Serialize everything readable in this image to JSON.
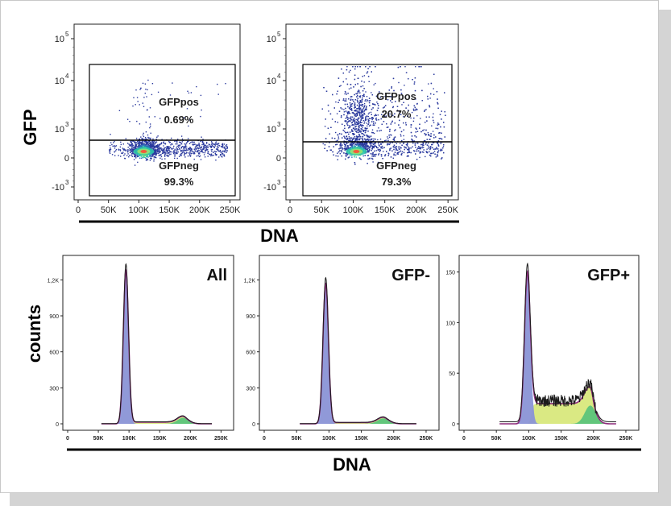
{
  "colors": {
    "axis": "#111111",
    "density_low": "#2b3a9e",
    "density_mid": "#2ec4a8",
    "density_high": "#f2c94c",
    "total_fit": "#8e2c7c",
    "g1_fill": "#8a93d6",
    "s_fill": "#d8e87c",
    "g2_fill": "#5cc47a",
    "data_line": "#1a1a1a"
  },
  "top_ylabel": "GFP",
  "top_xlabel": "DNA",
  "bottom_ylabel": "counts",
  "bottom_xlabel": "DNA",
  "chart_data": [
    {
      "type": "scatter",
      "subtype": "density-dot-plot",
      "name": "all-cells",
      "xlabel": "DNA",
      "ylabel": "GFP",
      "x_ticks": [
        "0",
        "50K",
        "100K",
        "150K",
        "200K",
        "250K"
      ],
      "y_ticks": [
        {
          "base": "10",
          "exp": "5"
        },
        {
          "base": "10",
          "exp": "4"
        },
        {
          "base": "10",
          "exp": "3"
        },
        {
          "base": "0",
          "exp": ""
        },
        {
          "base": "-10",
          "exp": "3"
        }
      ],
      "gates": [
        {
          "name": "GFPpos",
          "label": "GFPpos",
          "percent": "0.69%",
          "fraction": 0.0069
        },
        {
          "name": "GFPneg",
          "label": "GFPneg",
          "percent": "99.3%",
          "fraction": 0.993
        }
      ],
      "population": {
        "center_dna": 108000,
        "dna_spread": 20000,
        "s_tail_to": 245000,
        "gfp_spread": "low"
      }
    },
    {
      "type": "scatter",
      "subtype": "density-dot-plot",
      "name": "transfected-cells",
      "xlabel": "DNA",
      "ylabel": "GFP",
      "x_ticks": [
        "0",
        "50K",
        "100K",
        "150K",
        "200K",
        "250K"
      ],
      "y_ticks": [
        {
          "base": "10",
          "exp": "5"
        },
        {
          "base": "10",
          "exp": "4"
        },
        {
          "base": "10",
          "exp": "3"
        },
        {
          "base": "0",
          "exp": ""
        },
        {
          "base": "-10",
          "exp": "3"
        }
      ],
      "gates": [
        {
          "name": "GFPpos",
          "label": "GFPpos",
          "percent": "20.7%",
          "fraction": 0.207
        },
        {
          "name": "GFPneg",
          "label": "GFPneg",
          "percent": "79.3%",
          "fraction": 0.793
        }
      ],
      "population": {
        "center_dna": 105000,
        "dna_spread": 22000,
        "s_tail_to": 245000,
        "gfp_spread": "high"
      }
    },
    {
      "type": "area",
      "subtype": "cell-cycle-histogram",
      "name": "All",
      "title": "All",
      "xlabel": "DNA",
      "ylabel": "counts",
      "x_ticks": [
        "0",
        "50K",
        "100K",
        "150K",
        "200K",
        "250K"
      ],
      "y_ticks": [
        "0",
        "300",
        "600",
        "900",
        "1,2K"
      ],
      "xlim": [
        0,
        260000
      ],
      "ylim": [
        0,
        1350
      ],
      "peaks": {
        "g1_center": 95000,
        "g1_sigma": 4200,
        "g1_height": 1280,
        "g2_center": 188000,
        "g2_sigma": 9000,
        "g2_height": 50,
        "s_level": 14
      }
    },
    {
      "type": "area",
      "subtype": "cell-cycle-histogram",
      "name": "GFP-",
      "title": "GFP-",
      "xlabel": "DNA",
      "ylabel": "counts",
      "x_ticks": [
        "0",
        "50K",
        "100K",
        "150K",
        "200K",
        "250K"
      ],
      "y_ticks": [
        "0",
        "300",
        "600",
        "900",
        "1,2K"
      ],
      "xlim": [
        0,
        260000
      ],
      "ylim": [
        0,
        1350
      ],
      "peaks": {
        "g1_center": 95000,
        "g1_sigma": 4200,
        "g1_height": 1170,
        "g2_center": 184000,
        "g2_sigma": 9000,
        "g2_height": 45,
        "s_level": 10
      }
    },
    {
      "type": "area",
      "subtype": "cell-cycle-histogram",
      "name": "GFP+",
      "title": "GFP+",
      "xlabel": "DNA",
      "ylabel": "counts",
      "x_ticks": [
        "0",
        "50K",
        "100K",
        "150K",
        "200K",
        "250K"
      ],
      "y_ticks": [
        "0",
        "50",
        "100",
        "150"
      ],
      "xlim": [
        0,
        260000
      ],
      "ylim": [
        0,
        160
      ],
      "peaks": {
        "g1_center": 98000,
        "g1_sigma": 4500,
        "g1_height": 150,
        "g2_center": 195000,
        "g2_sigma": 8500,
        "g2_height": 18,
        "s_level": 20
      }
    }
  ]
}
